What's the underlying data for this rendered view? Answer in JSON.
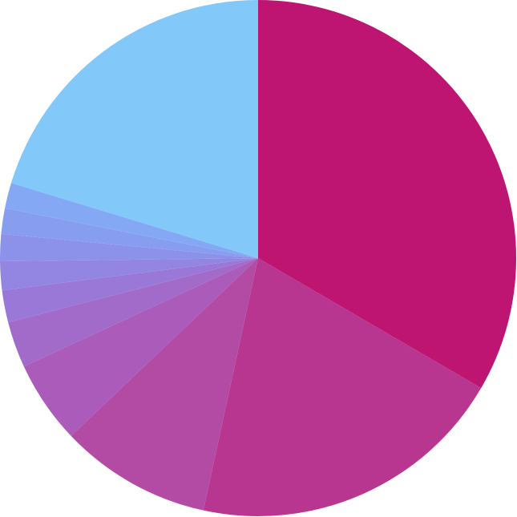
{
  "chart_data": {
    "type": "pie",
    "title": "",
    "legend": "none",
    "start_angle": "12 o'clock",
    "direction": "clockwise",
    "slices": [
      {
        "value": 33.4,
        "color": "#bf1572"
      },
      {
        "value": 20.0,
        "color": "#b8368f"
      },
      {
        "value": 9.5,
        "color": "#b34ba4"
      },
      {
        "value": 5.2,
        "color": "#ab5bb9"
      },
      {
        "value": 2.9,
        "color": "#a26ac9"
      },
      {
        "value": 2.0,
        "color": "#9a78d8"
      },
      {
        "value": 1.8,
        "color": "#9385e2"
      },
      {
        "value": 1.7,
        "color": "#8c91e9"
      },
      {
        "value": 1.6,
        "color": "#879df0"
      },
      {
        "value": 1.6,
        "color": "#84a8f4"
      },
      {
        "value": 20.3,
        "color": "#82c8f9"
      }
    ]
  }
}
